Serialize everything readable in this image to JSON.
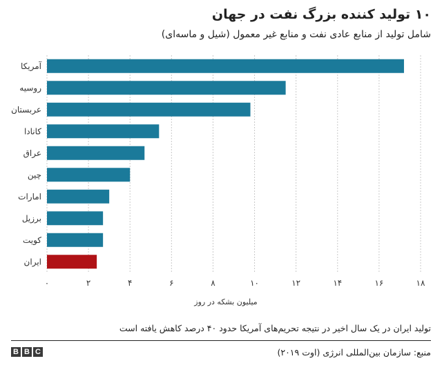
{
  "header": {
    "title": "۱۰ تولید کننده بزرگ نفت در جهان",
    "subtitle": "شامل تولید از منابع عادی نفت و منابع غیر معمول (شیل و ماسه‌ای)"
  },
  "chart_data": {
    "type": "bar",
    "orientation": "horizontal",
    "categories": [
      "آمریکا",
      "روسیه",
      "عربستان",
      "کانادا",
      "عراق",
      "چین",
      "امارات",
      "برزیل",
      "کویت",
      "ایران"
    ],
    "values": [
      17.2,
      11.5,
      9.8,
      5.4,
      4.7,
      4.0,
      3.0,
      2.7,
      2.7,
      2.4
    ],
    "xlim": [
      0,
      18
    ],
    "x_ticks": [
      0,
      2,
      4,
      6,
      8,
      10,
      12,
      14,
      16,
      18
    ],
    "x_tick_labels": [
      "۰",
      "۲",
      "۴",
      "۶",
      "۸",
      "۱۰",
      "۱۲",
      "۱۴",
      "۱۶",
      "۱۸"
    ],
    "xlabel": "میلیون بشکه در روز",
    "grid": "vertical dotted",
    "colors": {
      "default": "#1b7a9a",
      "highlight": "#b01216",
      "highlight_category": "ایران"
    }
  },
  "footer": {
    "note": "تولید ایران در یک سال اخیر در نتیجه تحریم‌های آمریکا حدود ۴۰ درصد کاهش یافته است",
    "source": "منبع: سازمان بین‌المللی انرژی (اوت ۲۰۱۹)",
    "logo_letters": [
      "B",
      "B",
      "C"
    ]
  }
}
